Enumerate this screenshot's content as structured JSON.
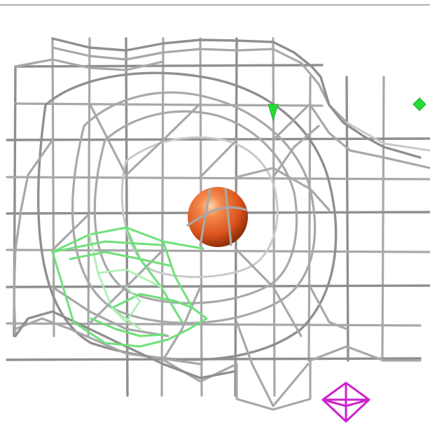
{
  "scene": {
    "background": "#ffffff",
    "colors": {
      "mesh_gray": "#a8a8a8",
      "mesh_green": "#6fe07a",
      "atom_sphere": "#e8642a",
      "marker_magenta": "#cc22cc",
      "green_marker": "#22dd33"
    },
    "objects": [
      {
        "name": "gray-density-mesh",
        "color": "gray",
        "shape": "wireframe-grid"
      },
      {
        "name": "green-density-mesh",
        "color": "green",
        "shape": "wireframe-cage"
      },
      {
        "name": "atom-sphere",
        "color": "orange",
        "shape": "sphere"
      },
      {
        "name": "magenta-marker",
        "color": "magenta",
        "shape": "octahedron-wire"
      },
      {
        "name": "green-marker",
        "color": "green",
        "shape": "small-diamond"
      }
    ]
  }
}
